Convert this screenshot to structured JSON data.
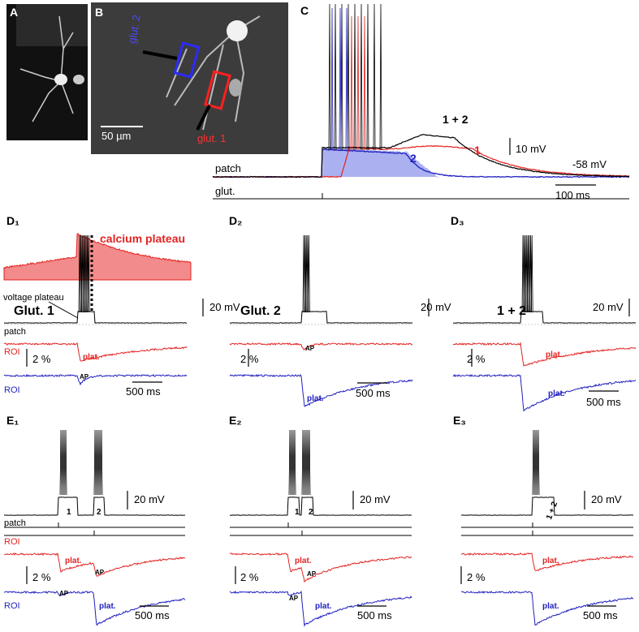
{
  "panels": {
    "A": {
      "label": "A"
    },
    "B": {
      "label": "B",
      "roi_2": "glut. 2",
      "roi_1": "glut. 1",
      "scale": "50 µm"
    },
    "C": {
      "label": "C",
      "trace_12": "1 + 2",
      "trace_1": "1",
      "trace_2": "2",
      "v_scale": "10 mV",
      "rest": "-58 mV",
      "patch": "patch",
      "glut": "glut.",
      "t_scale": "100 ms"
    },
    "D1": {
      "label": "D₁",
      "calcium": "calcium plateau",
      "voltage": "voltage plateau",
      "site": "Glut. 1",
      "v_scale": "20 mV",
      "patch": "patch",
      "roi_red": "ROI",
      "f_scale": "2 %",
      "plat_red": "plat.",
      "roi_blue": "ROI",
      "ap_blue": "AP",
      "t_scale": "500 ms"
    },
    "D2": {
      "label": "D₂",
      "site": "Glut. 2",
      "v_scale": "20 mV",
      "ap_red": "AP",
      "f_scale": "2 %",
      "plat_blue": "plat.",
      "t_scale": "500 ms"
    },
    "D3": {
      "label": "D₃",
      "site": "1 + 2",
      "v_scale": "20 mV",
      "plat_red": "plat.",
      "f_scale": "2 %",
      "plat_blue": "plat.",
      "t_scale": "500 ms"
    },
    "E1": {
      "label": "E₁",
      "v_scale": "20 mV",
      "stim_1": "1",
      "stim_2": "2",
      "patch": "patch",
      "roi_red": "ROI",
      "plat_red": "plat.",
      "ap_red": "AP",
      "f_scale": "2 %",
      "roi_blue": "ROI",
      "ap_blue": "AP",
      "plat_blue": "plat.",
      "t_scale": "500 ms"
    },
    "E2": {
      "label": "E₂",
      "v_scale": "20 mV",
      "stim_1": "1",
      "stim_2": "2",
      "plat_red": "plat.",
      "ap_red": "AP",
      "f_scale": "2 %",
      "ap_blue": "AP",
      "plat_blue": "plat.",
      "t_scale": "500 ms"
    },
    "E3": {
      "label": "E₃",
      "v_scale": "20 mV",
      "stim_12": "1 + 2",
      "plat_red": "plat.",
      "f_scale": "2 %",
      "plat_blue": "plat.",
      "t_scale": "500 ms"
    }
  }
}
